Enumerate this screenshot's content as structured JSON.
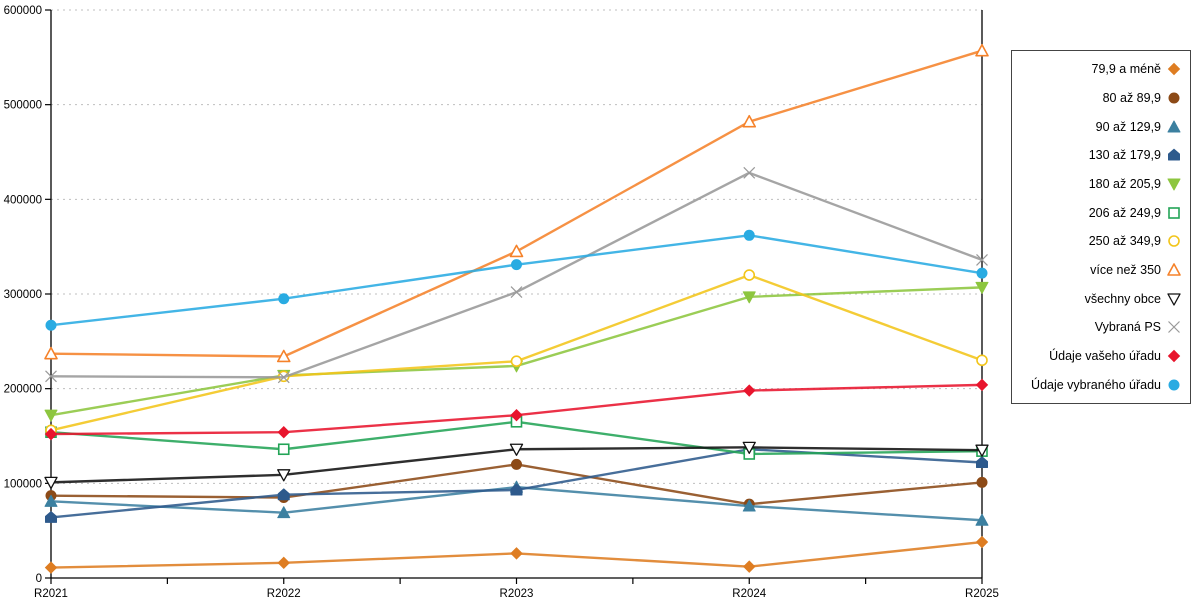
{
  "chart_data": {
    "type": "line",
    "title": "",
    "xlabel": "",
    "ylabel": "",
    "legend_position": "right",
    "grid": "horizontal-dashed",
    "categories": [
      "R2021",
      "R2022",
      "R2023",
      "R2024",
      "R2025"
    ],
    "y_axis": {
      "min": 0,
      "max": 600000,
      "tick_step": 100000,
      "tick_labels": [
        "0",
        "100000",
        "200000",
        "300000",
        "400000",
        "500000",
        "600000"
      ]
    },
    "series": [
      {
        "name": "79,9 a méně",
        "marker": "diamond",
        "style": "filled",
        "color": "#DE7D22",
        "values": [
          11000,
          16000,
          26000,
          12000,
          38000
        ]
      },
      {
        "name": "80 až 89,9",
        "marker": "circle",
        "style": "filled",
        "color": "#8C4A17",
        "values": [
          87000,
          85000,
          120000,
          78000,
          101000
        ]
      },
      {
        "name": "90 až 129,9",
        "marker": "triangle-up",
        "style": "filled",
        "color": "#3C80A0",
        "values": [
          81000,
          69000,
          96000,
          76000,
          61000
        ]
      },
      {
        "name": "130 až 179,9",
        "marker": "pentagon",
        "style": "filled",
        "color": "#2E5A8C",
        "values": [
          64000,
          88000,
          93000,
          136000,
          122000
        ]
      },
      {
        "name": "180 až 205,9",
        "marker": "triangle-down",
        "style": "filled",
        "color": "#8DC63F",
        "values": [
          172000,
          214000,
          224000,
          297000,
          307000
        ]
      },
      {
        "name": "206 až 249,9",
        "marker": "square",
        "style": "open",
        "color": "#23A457",
        "values": [
          154000,
          136000,
          165000,
          131000,
          134000
        ]
      },
      {
        "name": "250 až 349,9",
        "marker": "circle",
        "style": "open",
        "color": "#F2C51A",
        "values": [
          156000,
          213000,
          229000,
          320000,
          230000
        ]
      },
      {
        "name": "více než 350",
        "marker": "triangle-up",
        "style": "open",
        "color": "#F5822A",
        "values": [
          237000,
          234000,
          345000,
          482000,
          557000
        ]
      },
      {
        "name": "všechny obce",
        "marker": "triangle-down",
        "style": "open",
        "color": "#111111",
        "values": [
          101000,
          109000,
          136000,
          138000,
          135000
        ]
      },
      {
        "name": "Vybraná PS",
        "marker": "x-cross",
        "style": "open",
        "color": "#999999",
        "values": [
          213000,
          212000,
          302000,
          428000,
          336000
        ]
      },
      {
        "name": "Údaje vašeho úřadu",
        "marker": "diamond",
        "style": "filled",
        "color": "#E8152D",
        "values": [
          152000,
          154000,
          172000,
          198000,
          204000
        ]
      },
      {
        "name": "Údaje vybraného úřadu",
        "marker": "circle",
        "style": "filled",
        "color": "#29ABE2",
        "values": [
          267000,
          295000,
          331000,
          362000,
          322000
        ]
      }
    ]
  },
  "colors": {
    "background": "#ffffff",
    "axis": "#000000",
    "grid": "#bfbfbf",
    "tick_text": "#000000",
    "legend_border": "#444444"
  }
}
